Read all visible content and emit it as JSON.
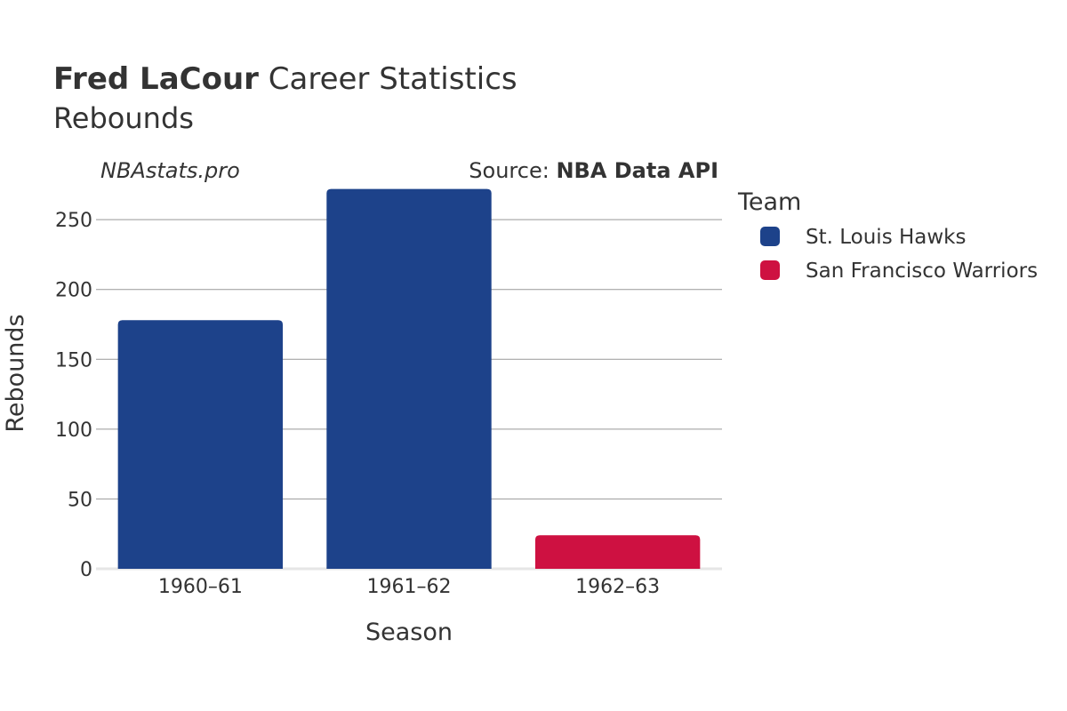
{
  "header": {
    "player_name": "Fred LaCour",
    "title_rest": " Career Statistics",
    "subtitle": "Rebounds"
  },
  "watermark": "NBAstats.pro",
  "source": {
    "prefix": "Source: ",
    "name": "NBA Data API"
  },
  "colors": {
    "st_louis_hawks": "#1d428a",
    "san_francisco_warriors": "#ce1141",
    "grid": "#999999",
    "text": "#333333"
  },
  "chart_data": {
    "type": "bar",
    "title": "Fred LaCour Career Statistics",
    "subtitle": "Rebounds",
    "xlabel": "Season",
    "ylabel": "Rebounds",
    "ylim": [
      0,
      280
    ],
    "yticks": [
      0,
      50,
      100,
      150,
      200,
      250
    ],
    "grid": true,
    "legend_title": "Team",
    "legend_position": "right",
    "categories": [
      "1960–61",
      "1961–62",
      "1962–63"
    ],
    "series": [
      {
        "name": "St. Louis Hawks",
        "color": "#1d428a",
        "values": [
          178,
          272,
          null
        ]
      },
      {
        "name": "San Francisco Warriors",
        "color": "#ce1141",
        "values": [
          null,
          null,
          24
        ]
      }
    ]
  }
}
